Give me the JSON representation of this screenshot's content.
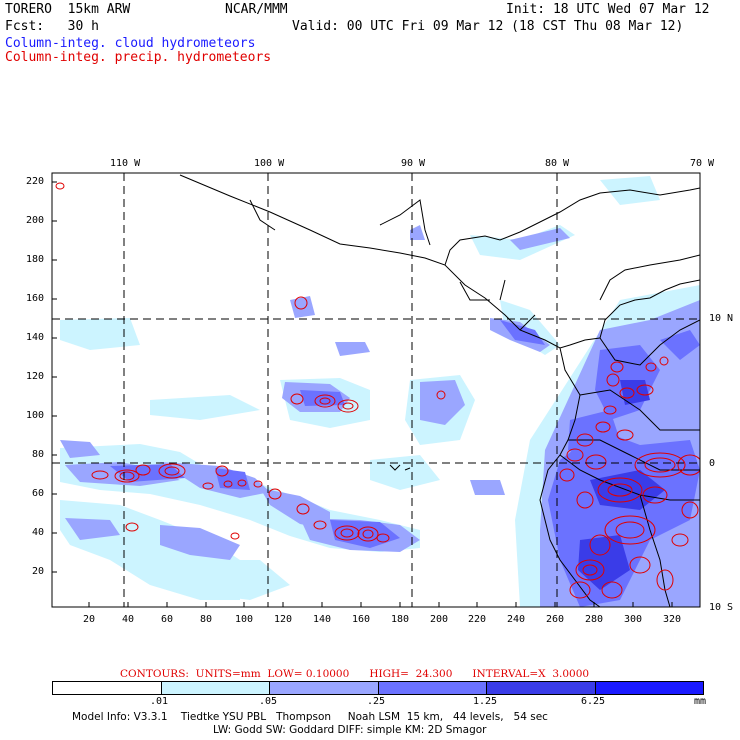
{
  "header": {
    "model": "TORERO  15km ARW",
    "center": "NCAR/MMM",
    "init": "Init: 18 UTC Wed 07 Mar 12",
    "forecast": "Fcst:   30 h",
    "valid": "Valid: 00 UTC Fri 09 Mar 12 (18 CST Thu 08 Mar 12)",
    "field_cloud": "Column-integ. cloud hydrometeors",
    "field_precip": "Column-integ. precip. hydrometeors"
  },
  "map": {
    "lon_labels": [
      "110 W",
      "100 W",
      "90 W",
      "80 W",
      "70 W"
    ],
    "lat_labels": [
      "10 N",
      "0",
      "10 S"
    ],
    "x_ticks": [
      "20",
      "40",
      "60",
      "80",
      "100",
      "120",
      "140",
      "160",
      "180",
      "200",
      "220",
      "240",
      "260",
      "280",
      "300",
      "320"
    ],
    "y_ticks": [
      "20",
      "40",
      "60",
      "80",
      "100",
      "120",
      "140",
      "160",
      "180",
      "200",
      "220"
    ]
  },
  "contours": {
    "label": "CONTOURS:  UNITS=mm  LOW= 0.10000      HIGH=  24.300      INTERVAL=X  3.0000"
  },
  "colorbar": {
    "levels": [
      ".01",
      ".05",
      ".25",
      "1.25",
      "6.25"
    ],
    "unit": "mm",
    "colors": [
      "#ffffff",
      "#ccf4ff",
      "#9aa6ff",
      "#6b72ff",
      "#3a3ce8",
      "#1a1aff"
    ]
  },
  "model_info": {
    "line1": "Model Info: V3.3.1    Tiedtke YSU PBL   Thompson     Noah LSM  15 km,   44 levels,   54 sec",
    "line2": "LW: Godd SW: Goddard DIFF: simple KM: 2D Smagor"
  }
}
